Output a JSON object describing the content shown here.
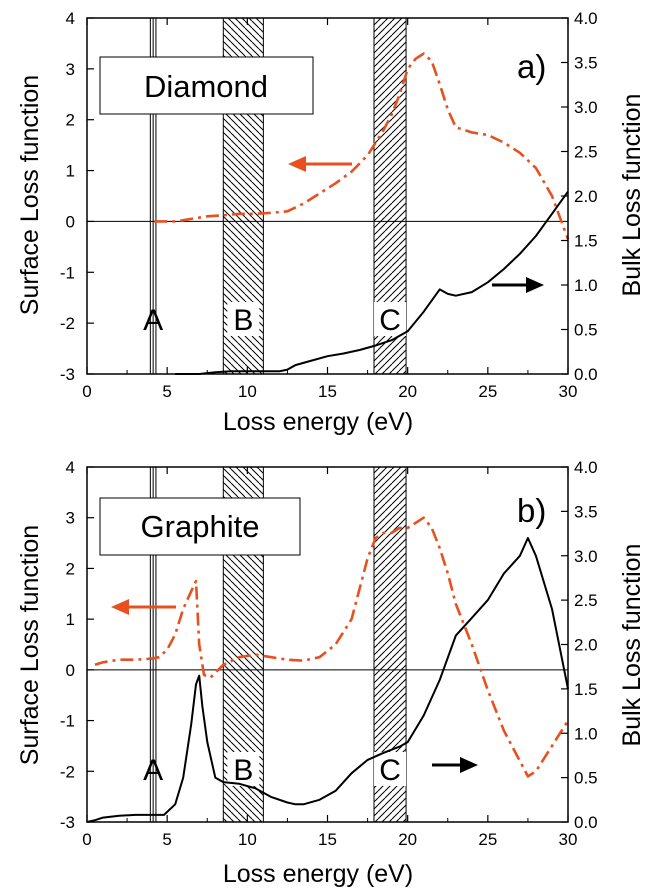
{
  "colors": {
    "surface": "#E8501F",
    "bulk": "#000000"
  },
  "bands": [
    {
      "label": "A",
      "x0": 3.95,
      "x1": 4.3,
      "pattern": "narrow"
    },
    {
      "label": "B",
      "x0": 8.5,
      "x1": 11.0,
      "pattern": "backslash"
    },
    {
      "label": "C",
      "x0": 17.9,
      "x1": 19.9,
      "pattern": "slash"
    }
  ],
  "chart_data": [
    {
      "type": "line",
      "panel_label": "a)",
      "material": "Diamond",
      "xlabel": "Loss energy  (eV)",
      "ylabel_left": "Surface Loss function",
      "ylabel_right": "Bulk Loss function",
      "xlim": [
        0,
        30
      ],
      "ylim_left": [
        -3,
        4
      ],
      "ylim_right": [
        0,
        4
      ],
      "xticks": [
        "0",
        "5",
        "10",
        "15",
        "20",
        "25",
        "30"
      ],
      "yticks_left": [
        "-3",
        "-2",
        "-1",
        "0",
        "1",
        "2",
        "3",
        "4"
      ],
      "yticks_right": [
        "0.0",
        "0.5",
        "1.0",
        "1.5",
        "2.0",
        "2.5",
        "3.0",
        "3.5",
        "4.0"
      ],
      "series": [
        {
          "axis": "left",
          "style": "dashdot",
          "x": [
            4.2,
            5.5,
            6.5,
            7.5,
            8.5,
            9.5,
            10.5,
            11.5,
            12.5,
            13.5,
            14.5,
            15.5,
            16.5,
            17.5,
            18.5,
            19.0,
            19.5,
            20.0,
            20.5,
            21.0,
            21.5,
            22.0,
            22.5,
            23.0,
            24.0,
            25.0,
            26.0,
            27.0,
            28.0,
            29.0,
            30.0
          ],
          "y": [
            0.0,
            0.0,
            0.05,
            0.1,
            0.12,
            0.15,
            0.15,
            0.17,
            0.2,
            0.35,
            0.55,
            0.75,
            0.98,
            1.3,
            1.8,
            2.1,
            2.5,
            3.0,
            3.2,
            3.3,
            3.15,
            2.7,
            2.2,
            1.85,
            1.75,
            1.7,
            1.55,
            1.35,
            1.05,
            0.5,
            -0.35
          ]
        },
        {
          "axis": "right",
          "style": "solid",
          "x": [
            5.5,
            7.0,
            8.0,
            9.0,
            10.0,
            11.0,
            12.0,
            12.5,
            13.0,
            14.0,
            15.0,
            16.0,
            17.0,
            18.0,
            19.0,
            20.0,
            21.0,
            22.0,
            22.5,
            23.0,
            24.0,
            25.0,
            26.0,
            27.0,
            28.0,
            29.0,
            30.0
          ],
          "y": [
            0.0,
            0.0,
            0.02,
            0.03,
            0.03,
            0.03,
            0.03,
            0.05,
            0.1,
            0.15,
            0.2,
            0.23,
            0.27,
            0.32,
            0.38,
            0.48,
            0.7,
            0.95,
            0.9,
            0.88,
            0.92,
            1.03,
            1.18,
            1.35,
            1.55,
            1.8,
            2.05
          ]
        }
      ]
    },
    {
      "type": "line",
      "panel_label": "b)",
      "material": "Graphite",
      "xlabel": "Loss energy  (eV)",
      "ylabel_left": "Surface Loss function",
      "ylabel_right": "Bulk Loss function",
      "xlim": [
        0,
        30
      ],
      "ylim_left": [
        -3,
        4
      ],
      "ylim_right": [
        0,
        4
      ],
      "xticks": [
        "0",
        "5",
        "10",
        "15",
        "20",
        "25",
        "30"
      ],
      "yticks_left": [
        "-3",
        "-2",
        "-1",
        "0",
        "1",
        "2",
        "3",
        "4"
      ],
      "yticks_right": [
        "0.0",
        "0.5",
        "1.0",
        "1.5",
        "2.0",
        "2.5",
        "3.0",
        "3.5",
        "4.0"
      ],
      "series": [
        {
          "axis": "left",
          "style": "dashdot",
          "x": [
            0.5,
            1.0,
            2.0,
            3.0,
            4.0,
            4.5,
            5.0,
            5.5,
            6.0,
            6.5,
            6.8,
            7.0,
            7.3,
            7.7,
            8.5,
            9.5,
            10.5,
            11.5,
            12.5,
            13.5,
            14.5,
            15.5,
            16.5,
            17.0,
            17.5,
            18.0,
            18.5,
            19.0,
            19.5,
            20.0,
            20.5,
            21.0,
            21.5,
            22.0,
            22.5,
            23.0,
            24.0,
            25.0,
            26.0,
            27.0,
            27.5,
            28.0,
            29.0,
            30.0
          ],
          "y": [
            0.1,
            0.15,
            0.2,
            0.2,
            0.22,
            0.25,
            0.4,
            0.7,
            1.2,
            1.55,
            1.75,
            0.5,
            -0.1,
            -0.15,
            0.1,
            0.25,
            0.3,
            0.25,
            0.2,
            0.18,
            0.25,
            0.5,
            1.0,
            1.6,
            2.2,
            2.6,
            2.7,
            2.7,
            2.8,
            2.8,
            2.9,
            3.0,
            2.8,
            2.4,
            1.9,
            1.3,
            0.5,
            -0.4,
            -1.2,
            -1.8,
            -2.1,
            -2.0,
            -1.5,
            -1.0
          ]
        },
        {
          "axis": "right",
          "style": "solid",
          "x": [
            0.0,
            0.5,
            1.0,
            2.0,
            3.0,
            4.0,
            4.8,
            5.5,
            6.0,
            6.5,
            6.8,
            7.0,
            7.2,
            7.5,
            8.0,
            8.5,
            9.5,
            10.5,
            11.5,
            12.5,
            13.0,
            13.5,
            14.5,
            15.5,
            16.5,
            17.5,
            18.5,
            19.5,
            20.0,
            21.0,
            22.0,
            23.0,
            24.0,
            25.0,
            26.0,
            27.0,
            27.5,
            28.0,
            29.0,
            30.0
          ],
          "y": [
            0.0,
            0.02,
            0.05,
            0.07,
            0.08,
            0.08,
            0.08,
            0.2,
            0.5,
            1.1,
            1.55,
            1.65,
            1.3,
            0.9,
            0.5,
            0.45,
            0.43,
            0.38,
            0.28,
            0.22,
            0.2,
            0.2,
            0.25,
            0.35,
            0.55,
            0.7,
            0.78,
            0.85,
            0.9,
            1.2,
            1.6,
            2.1,
            2.3,
            2.5,
            2.8,
            3.0,
            3.2,
            3.0,
            2.4,
            1.5
          ]
        }
      ]
    }
  ]
}
